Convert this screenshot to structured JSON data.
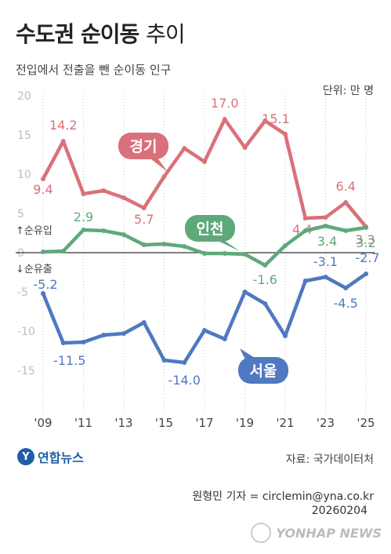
{
  "header": {
    "title_bold": "수도권 순이동",
    "title_light": "추이",
    "subtitle": "전입에서 전출을 뺀 순이동 인구",
    "unit": "단위: 만 명"
  },
  "chart_data": {
    "type": "line",
    "x": [
      2009,
      2010,
      2011,
      2012,
      2013,
      2014,
      2015,
      2016,
      2017,
      2018,
      2019,
      2020,
      2021,
      2022,
      2023,
      2024,
      2025
    ],
    "x_tick_labels": [
      "'09",
      "'11",
      "'13",
      "'15",
      "'17",
      "'19",
      "'21",
      "'23",
      "'25"
    ],
    "x_tick_years": [
      2009,
      2011,
      2013,
      2015,
      2017,
      2019,
      2021,
      2023,
      2025
    ],
    "y_tick_labels": [
      "20",
      "15",
      "10",
      "5",
      "0",
      "-5",
      "-10",
      "-15"
    ],
    "y_tick_values": [
      20,
      15,
      10,
      5,
      0,
      -5,
      -10,
      -15
    ],
    "ylim": [
      -20,
      20
    ],
    "zero_labels": {
      "up": "↑순유입",
      "down": "↓순유출"
    },
    "grid": "vertical",
    "series": [
      {
        "name": "경기",
        "color": "#d9717a",
        "values": [
          9.4,
          14.2,
          7.5,
          7.9,
          7.0,
          5.7,
          9.7,
          13.3,
          11.6,
          17.0,
          13.4,
          16.8,
          15.1,
          4.4,
          4.5,
          6.4,
          3.3
        ],
        "labels": [
          {
            "i": 0,
            "text": "9.4"
          },
          {
            "i": 1,
            "text": "14.2"
          },
          {
            "i": 5,
            "text": "5.7"
          },
          {
            "i": 9,
            "text": "17.0"
          },
          {
            "i": 12,
            "text": "15.1"
          },
          {
            "i": 13,
            "text": "4.4"
          },
          {
            "i": 15,
            "text": "6.4"
          },
          {
            "i": 16,
            "text": "3.3"
          }
        ]
      },
      {
        "name": "인천",
        "color": "#5ea97a",
        "values": [
          0.1,
          0.2,
          2.9,
          2.8,
          2.3,
          1.0,
          1.1,
          0.8,
          -0.1,
          -0.1,
          -0.2,
          -1.6,
          0.9,
          2.8,
          3.4,
          2.8,
          3.2
        ],
        "labels": [
          {
            "i": 2,
            "text": "2.9"
          },
          {
            "i": 11,
            "text": "-1.6"
          },
          {
            "i": 14,
            "text": "3.4"
          },
          {
            "i": 16,
            "text": "3.2"
          }
        ]
      },
      {
        "name": "서울",
        "color": "#4f79c0",
        "values": [
          -5.2,
          -11.5,
          -11.4,
          -10.5,
          -10.3,
          -8.9,
          -13.7,
          -14.0,
          -9.9,
          -11.0,
          -5.0,
          -6.5,
          -10.6,
          -3.6,
          -3.1,
          -4.5,
          -2.7
        ],
        "labels": [
          {
            "i": 0,
            "text": "-5.2"
          },
          {
            "i": 1,
            "text": "-11.5"
          },
          {
            "i": 7,
            "text": "-14.0"
          },
          {
            "i": 14,
            "text": "-3.1"
          },
          {
            "i": 15,
            "text": "-4.5"
          },
          {
            "i": 16,
            "text": "-2.7"
          }
        ]
      }
    ]
  },
  "footer": {
    "logo_mark": "Y",
    "logo_text": "연합뉴스",
    "source": "자료: 국가데이터처",
    "byline": "원형민 기자 = circlemin@yna.co.kr",
    "date": "20260204",
    "watermark": "YONHAP NEWS"
  }
}
